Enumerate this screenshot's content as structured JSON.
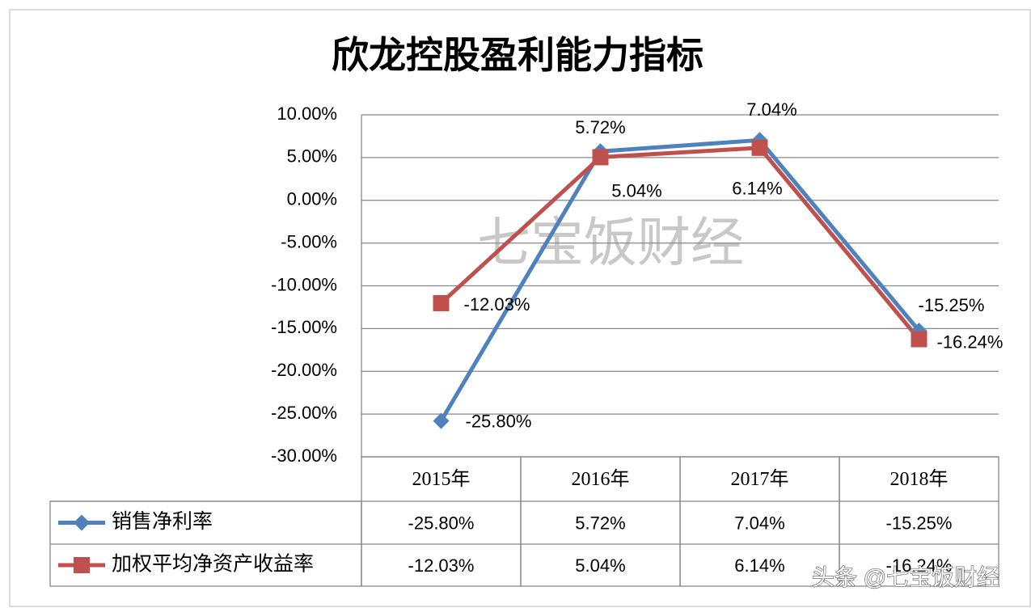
{
  "chart_data": {
    "type": "line",
    "title": "欣龙控股盈利能力指标",
    "watermark": "七宝饭财经",
    "credit": "头条 @七宝饭财经",
    "categories": [
      "2015年",
      "2016年",
      "2017年",
      "2018年"
    ],
    "series": [
      {
        "name": "销售净利率",
        "color": "#4f81bd",
        "marker": "diamond",
        "values": [
          -25.8,
          5.72,
          7.04,
          -15.25
        ],
        "value_labels": [
          "-25.80%",
          "5.72%",
          "7.04%",
          "-15.25%"
        ]
      },
      {
        "name": "加权平均净资产收益率",
        "color": "#c0504d",
        "marker": "square",
        "values": [
          -12.03,
          5.04,
          6.14,
          -16.24
        ],
        "value_labels": [
          "-12.03%",
          "5.04%",
          "6.14%",
          "-16.24%"
        ]
      }
    ],
    "ylim": [
      -30,
      10
    ],
    "yticks": [
      {
        "value": -30,
        "label": "-30.00%"
      },
      {
        "value": -25,
        "label": "-25.00%"
      },
      {
        "value": -20,
        "label": "-20.00%"
      },
      {
        "value": -15,
        "label": "-15.00%"
      },
      {
        "value": -10,
        "label": "-10.00%"
      },
      {
        "value": -5,
        "label": "-5.00%"
      },
      {
        "value": 0,
        "label": "0.00%"
      },
      {
        "value": 5,
        "label": "5.00%"
      },
      {
        "value": 10,
        "label": "10.00%"
      }
    ],
    "grid": true,
    "data_table": true
  }
}
